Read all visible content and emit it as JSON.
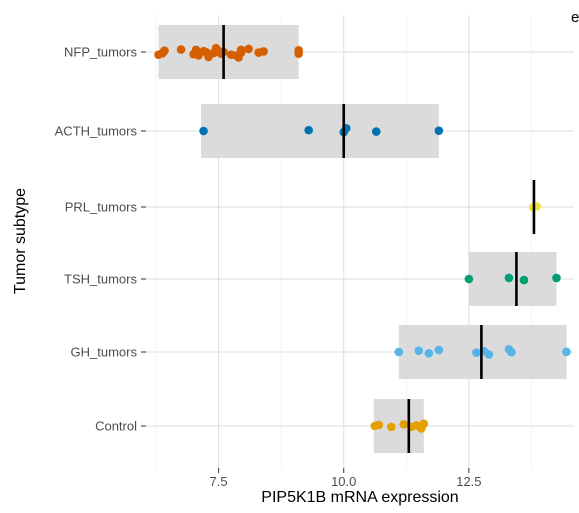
{
  "chart_data": {
    "type": "scatter",
    "orientation": "horizontal",
    "panel_tag": "e",
    "title": "",
    "xlabel": "PIP5K1B mRNA expression",
    "ylabel": "Tumor subtype",
    "xlim": [
      6.05,
      14.6
    ],
    "xticks": [
      7.5,
      10.0,
      12.5
    ],
    "xtick_labels": [
      "7.5",
      "10.0",
      "12.5"
    ],
    "grid": true,
    "legend": "none",
    "categories": [
      "NFP_tumors",
      "ACTH_tumors",
      "PRL_tumors",
      "TSH_tumors",
      "GH_tumors",
      "Control"
    ],
    "series": [
      {
        "category": "NFP_tumors",
        "color": "#D55E00",
        "box": [
          6.3,
          9.1
        ],
        "median": 7.6,
        "points": [
          [
            6.3,
            0.25
          ],
          [
            6.38,
            0.12
          ],
          [
            6.42,
            -0.12
          ],
          [
            6.75,
            -0.22
          ],
          [
            7.0,
            0.2
          ],
          [
            7.05,
            -0.2
          ],
          [
            7.1,
            0.3
          ],
          [
            7.2,
            -0.08
          ],
          [
            7.25,
            0.0
          ],
          [
            7.3,
            0.45
          ],
          [
            7.4,
            0.1
          ],
          [
            7.45,
            -0.35
          ],
          [
            7.5,
            -0.1
          ],
          [
            7.55,
            0.15
          ],
          [
            7.6,
            0.0
          ],
          [
            7.75,
            0.25
          ],
          [
            7.85,
            0.32
          ],
          [
            7.9,
            0.5
          ],
          [
            7.95,
            -0.2
          ],
          [
            7.95,
            0.05
          ],
          [
            8.1,
            -0.28
          ],
          [
            8.3,
            0.05
          ],
          [
            8.4,
            -0.05
          ],
          [
            9.1,
            0.15
          ],
          [
            9.1,
            -0.15
          ]
        ]
      },
      {
        "category": "ACTH_tumors",
        "color": "#0072B2",
        "box": [
          7.15,
          11.9
        ],
        "median": 10.0,
        "points": [
          [
            7.2,
            0.0
          ],
          [
            9.3,
            -0.08
          ],
          [
            10.0,
            0.1
          ],
          [
            10.05,
            -0.25
          ],
          [
            10.65,
            0.05
          ],
          [
            11.9,
            -0.03
          ]
        ]
      },
      {
        "category": "PRL_tumors",
        "color": "#F0E442",
        "box": null,
        "median": 13.8,
        "points": [
          [
            13.78,
            0.03
          ],
          [
            13.86,
            -0.05
          ]
        ]
      },
      {
        "category": "TSH_tumors",
        "color": "#009E73",
        "box": [
          12.5,
          14.25
        ],
        "median": 13.45,
        "points": [
          [
            12.5,
            0.0
          ],
          [
            13.3,
            -0.1
          ],
          [
            13.6,
            0.1
          ],
          [
            14.25,
            -0.1
          ]
        ]
      },
      {
        "category": "GH_tumors",
        "color": "#56B4E9",
        "box": [
          11.1,
          14.45
        ],
        "median": 12.75,
        "points": [
          [
            11.1,
            0.0
          ],
          [
            11.5,
            -0.12
          ],
          [
            11.7,
            0.12
          ],
          [
            11.9,
            -0.18
          ],
          [
            12.65,
            0.05
          ],
          [
            12.8,
            -0.08
          ],
          [
            12.9,
            0.22
          ],
          [
            13.3,
            -0.25
          ],
          [
            13.35,
            0.02
          ],
          [
            14.45,
            -0.02
          ]
        ]
      },
      {
        "category": "Control",
        "color": "#E69F00",
        "box": [
          10.6,
          11.6
        ],
        "median": 11.3,
        "points": [
          [
            10.62,
            0.0
          ],
          [
            10.7,
            -0.1
          ],
          [
            10.95,
            0.08
          ],
          [
            11.2,
            -0.15
          ],
          [
            11.35,
            0.08
          ],
          [
            11.45,
            -0.05
          ],
          [
            11.55,
            0.22
          ],
          [
            11.6,
            -0.2
          ]
        ]
      }
    ]
  }
}
